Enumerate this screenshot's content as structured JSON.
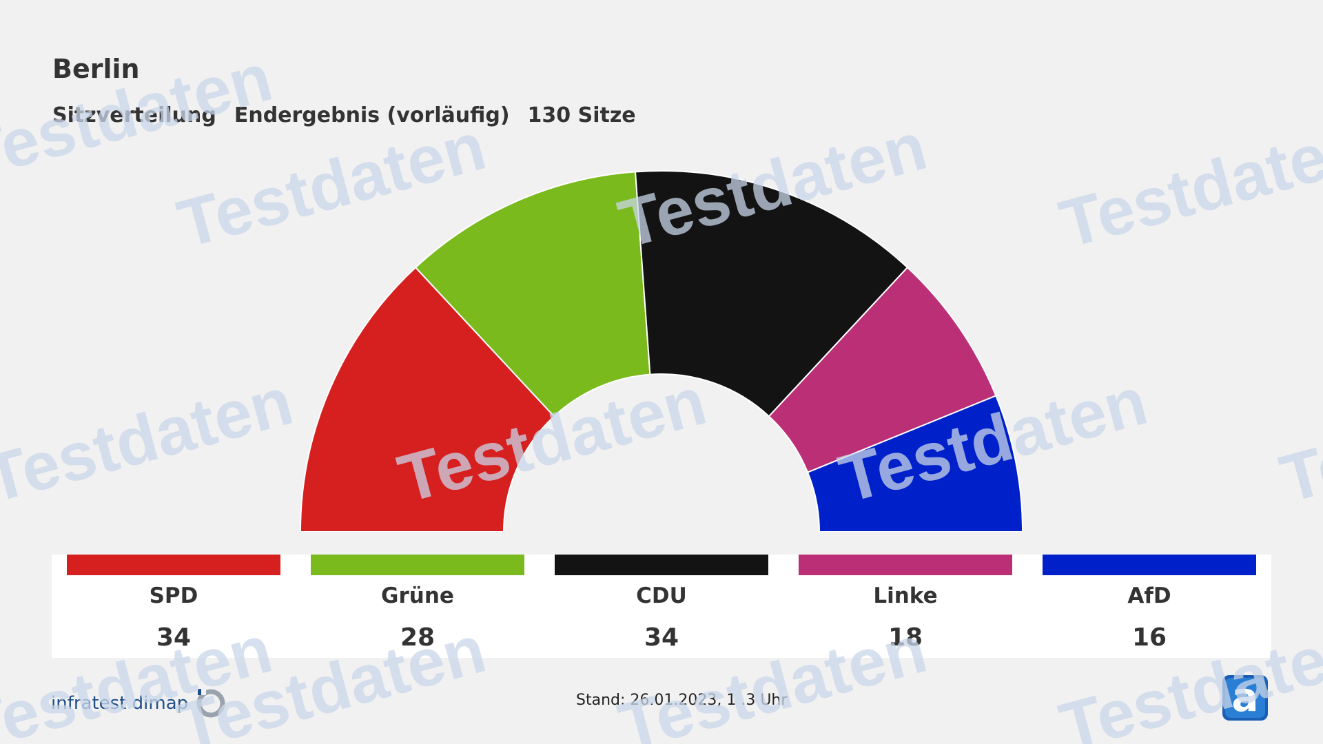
{
  "header": {
    "title": "Berlin",
    "subtitle_1": "Sitzverteilung",
    "subtitle_2": "Endergebnis (vorläufig)",
    "subtitle_3": "130 Sitze"
  },
  "watermark_text": "Testdaten",
  "chart_data": {
    "type": "pie",
    "variant": "parliament-semicircle",
    "title": "Berlin",
    "total_seats": 130,
    "categories": [
      "SPD",
      "Grüne",
      "CDU",
      "Linke",
      "AfD"
    ],
    "values": [
      34,
      28,
      34,
      18,
      16
    ],
    "colors": [
      "#d61f1f",
      "#7aba1c",
      "#131313",
      "#bb2f77",
      "#0020c9"
    ]
  },
  "legend": [
    {
      "party": "SPD",
      "seats": "34",
      "color": "#d61f1f"
    },
    {
      "party": "Grüne",
      "seats": "28",
      "color": "#7aba1c"
    },
    {
      "party": "CDU",
      "seats": "34",
      "color": "#131313"
    },
    {
      "party": "Linke",
      "seats": "18",
      "color": "#bb2f77"
    },
    {
      "party": "AfD",
      "seats": "16",
      "color": "#0020c9"
    }
  ],
  "footer": {
    "logo_text": "infratest dimap",
    "stand_label": "Stand:",
    "stand_value": "26.01.2023, 1 .3 Uhr"
  },
  "icons": {
    "infratest": "infratest-dimap-logo-icon",
    "ard": "ard-tagesschau-logo-icon"
  }
}
